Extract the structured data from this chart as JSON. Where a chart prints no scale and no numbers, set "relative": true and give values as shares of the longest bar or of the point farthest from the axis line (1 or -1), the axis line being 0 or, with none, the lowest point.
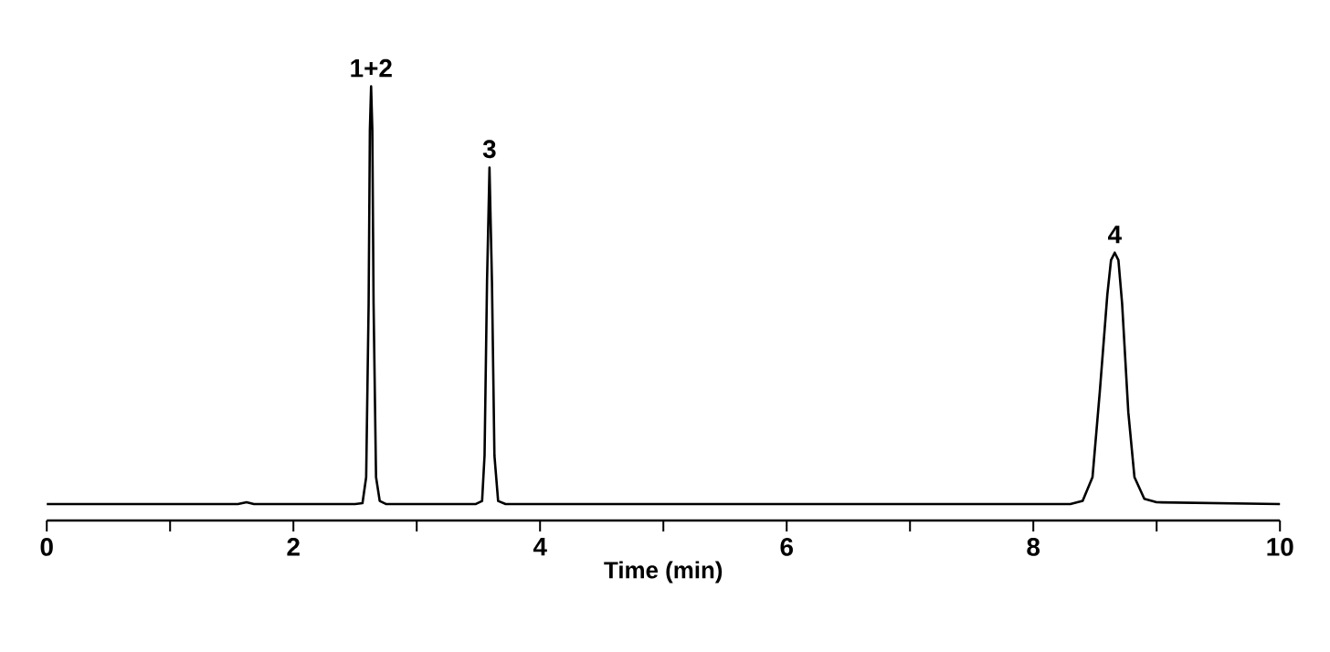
{
  "chart_data": {
    "type": "line",
    "relative": true,
    "xlabel": "Time (min)",
    "xlim": [
      0,
      10
    ],
    "xticks": [
      0,
      {
        "value": 1,
        "label": null
      },
      2,
      {
        "value": 3,
        "label": null
      },
      4,
      {
        "value": 5,
        "label": null
      },
      6,
      {
        "value": 7,
        "label": null
      },
      8,
      {
        "value": 9,
        "label": null
      },
      10
    ],
    "marker": "none",
    "line_style": "solid",
    "series": [
      {
        "color": "#000000",
        "x": [
          0,
          1.55,
          1.62,
          1.68,
          2.4,
          2.5,
          2.56,
          2.59,
          2.61,
          2.62,
          2.63,
          2.64,
          2.65,
          2.67,
          2.7,
          2.75,
          3.48,
          3.53,
          3.55,
          3.57,
          3.59,
          3.61,
          3.63,
          3.66,
          3.72,
          8.3,
          8.4,
          8.48,
          8.54,
          8.6,
          8.63,
          8.66,
          8.69,
          8.72,
          8.77,
          8.82,
          8.9,
          9.0,
          10
        ],
        "values": [
          0.038,
          0.038,
          0.042,
          0.038,
          0.038,
          0.038,
          0.04,
          0.1,
          0.5,
          0.9,
          1,
          0.9,
          0.5,
          0.1,
          0.045,
          0.038,
          0.038,
          0.045,
          0.15,
          0.55,
          0.813,
          0.55,
          0.15,
          0.045,
          0.038,
          0.038,
          0.045,
          0.1,
          0.3,
          0.52,
          0.6,
          0.617,
          0.6,
          0.5,
          0.25,
          0.1,
          0.05,
          0.042,
          0.038
        ]
      }
    ],
    "annotations": [
      {
        "text": "1+2",
        "x": 2.63,
        "y": 1
      },
      {
        "text": "3",
        "x": 3.59,
        "y": 0.813
      },
      {
        "text": "4",
        "x": 8.66,
        "y": 0.617
      }
    ]
  }
}
